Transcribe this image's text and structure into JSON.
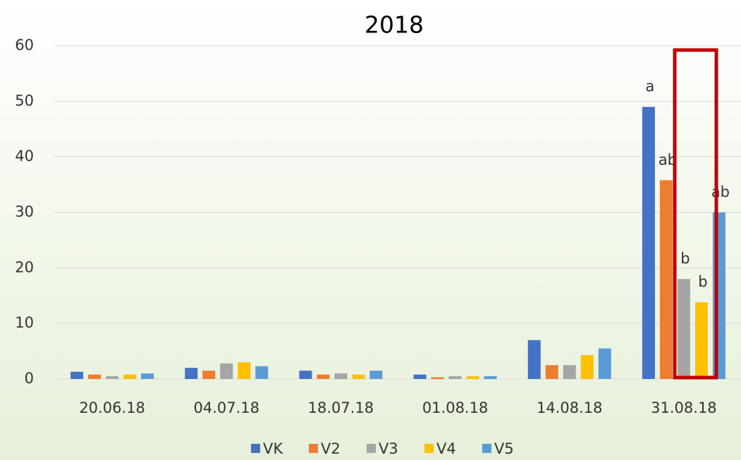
{
  "chart_data": {
    "type": "bar",
    "title": "2018",
    "categories": [
      "20.06.18",
      "04.07.18",
      "18.07.18",
      "01.08.18",
      "14.08.18",
      "31.08.18"
    ],
    "series": [
      {
        "name": "VK",
        "color": "#4472c4",
        "values": [
          1.3,
          2.0,
          1.5,
          0.8,
          7.0,
          49.0
        ],
        "value_labels": [
          null,
          null,
          null,
          null,
          null,
          "a"
        ]
      },
      {
        "name": "V2",
        "color": "#ed7d31",
        "values": [
          0.8,
          1.5,
          0.8,
          0.3,
          2.5,
          35.8
        ],
        "value_labels": [
          null,
          null,
          null,
          null,
          null,
          "ab"
        ]
      },
      {
        "name": "V3",
        "color": "#a5a5a5",
        "values": [
          0.5,
          2.8,
          1.0,
          0.5,
          2.5,
          18.0
        ],
        "value_labels": [
          null,
          null,
          null,
          null,
          null,
          "b"
        ]
      },
      {
        "name": "V4",
        "color": "#ffc000",
        "values": [
          0.8,
          3.0,
          0.8,
          0.5,
          4.3,
          13.8
        ],
        "value_labels": [
          null,
          null,
          null,
          null,
          null,
          "b"
        ]
      },
      {
        "name": "V5",
        "color": "#5b9bd5",
        "values": [
          1.0,
          2.3,
          1.5,
          0.5,
          5.5,
          30.0
        ],
        "value_labels": [
          null,
          null,
          null,
          null,
          null,
          "ab"
        ]
      }
    ],
    "ylim": [
      0,
      60
    ],
    "yticks": [
      0,
      10,
      20,
      30,
      40,
      50,
      60
    ],
    "grid": true,
    "legend": "bottom"
  }
}
